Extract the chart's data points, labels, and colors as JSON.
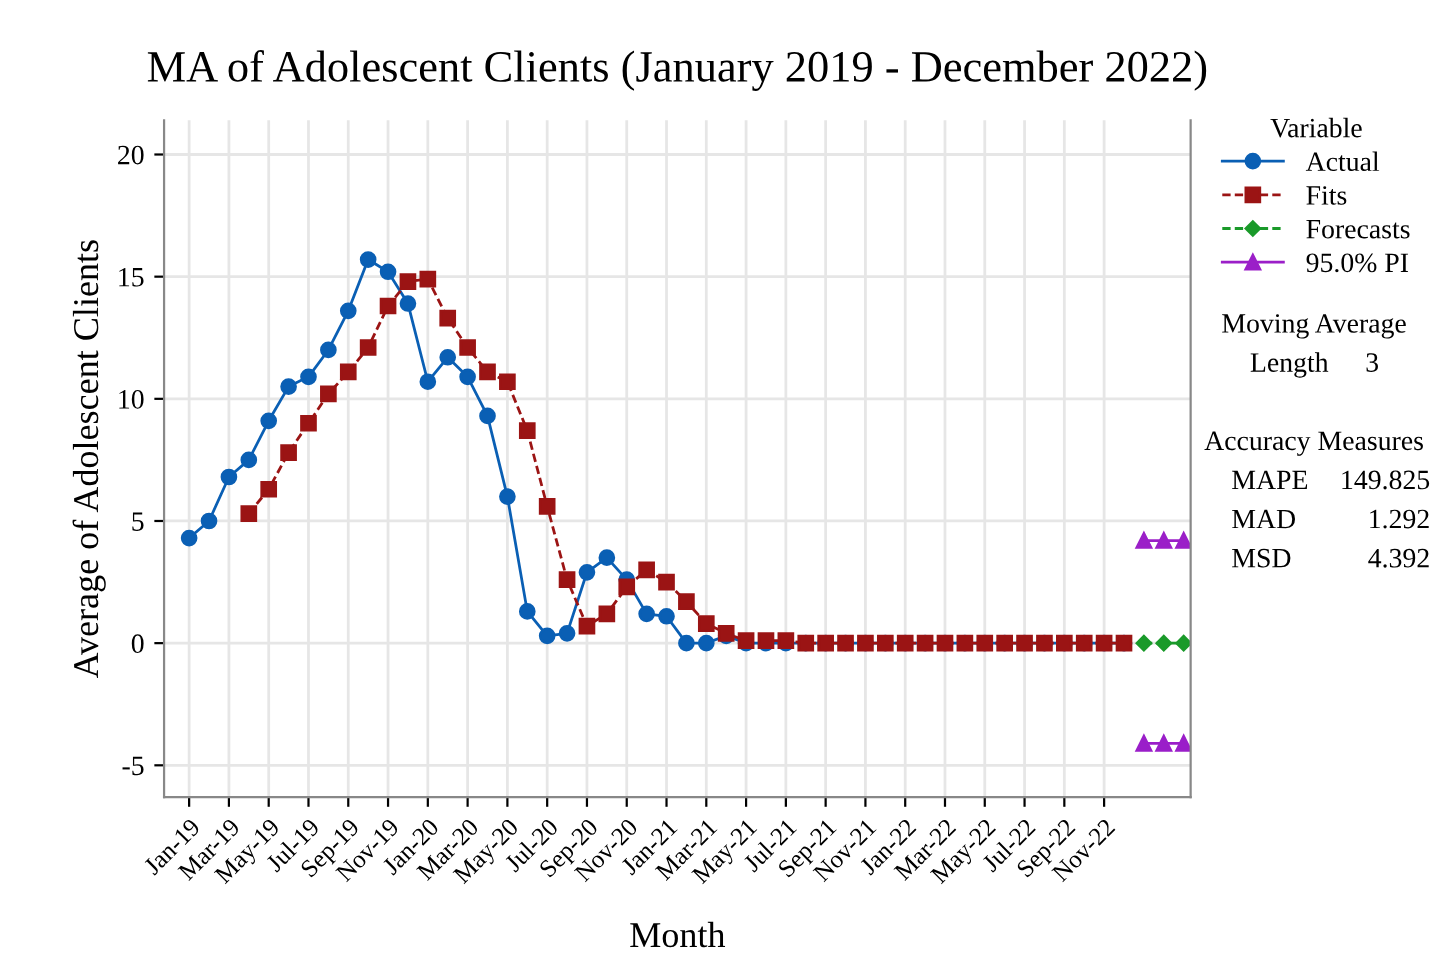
{
  "chart_data": {
    "type": "line",
    "title": "MA of Adolescent Clients (January 2019 - December 2022)",
    "xlabel": "Month",
    "ylabel": "Average of Adolescent Clients",
    "categories": [
      "Jan-19",
      null,
      "Mar-19",
      null,
      "May-19",
      null,
      "Jul-19",
      null,
      "Sep-19",
      null,
      "Nov-19",
      null,
      "Jan-20",
      null,
      "Mar-20",
      null,
      "May-20",
      null,
      "Jul-20",
      null,
      "Sep-20",
      null,
      "Nov-20",
      null,
      "Jan-21",
      null,
      "Mar-21",
      null,
      "May-21",
      null,
      "Jul-21",
      null,
      "Sep-21",
      null,
      "Nov-21",
      null,
      "Jan-22",
      null,
      "Mar-22",
      null,
      "May-22",
      null,
      "Jul-22",
      null,
      "Sep-22",
      null,
      "Nov-22",
      null,
      null,
      null,
      null
    ],
    "series": [
      {
        "name": "Actual",
        "color": "#0a5fb4",
        "marker": "circle",
        "line_style": "solid",
        "values": [
          4.3,
          5.0,
          6.8,
          7.5,
          9.1,
          10.5,
          10.9,
          12.0,
          13.6,
          15.7,
          15.2,
          13.9,
          10.7,
          11.7,
          10.9,
          9.3,
          6.0,
          1.3,
          0.3,
          0.4,
          2.9,
          3.5,
          2.6,
          1.2,
          1.1,
          0,
          0,
          0.3,
          0,
          0,
          0,
          0,
          0,
          0,
          0,
          0,
          0,
          0,
          0,
          0,
          0,
          0,
          0,
          0,
          0,
          0,
          0,
          0,
          null,
          null,
          null
        ]
      },
      {
        "name": "Fits",
        "color": "#9b1414",
        "marker": "square",
        "line_style": "dashed",
        "values": [
          null,
          null,
          null,
          5.3,
          6.3,
          7.8,
          9.0,
          10.2,
          11.1,
          12.1,
          13.8,
          14.8,
          14.9,
          13.3,
          12.1,
          11.1,
          10.7,
          8.7,
          5.6,
          2.6,
          0.7,
          1.2,
          2.3,
          3.0,
          2.5,
          1.7,
          0.8,
          0.4,
          0.1,
          0.1,
          0.1,
          0,
          0,
          0,
          0,
          0,
          0,
          0,
          0,
          0,
          0,
          0,
          0,
          0,
          0,
          0,
          0,
          0,
          null,
          null,
          null
        ]
      },
      {
        "name": "Forecasts",
        "color": "#1a9a2a",
        "marker": "diamond",
        "line_style": "dashed",
        "values": [
          null,
          null,
          null,
          null,
          null,
          null,
          null,
          null,
          null,
          null,
          null,
          null,
          null,
          null,
          null,
          null,
          null,
          null,
          null,
          null,
          null,
          null,
          null,
          null,
          null,
          null,
          null,
          null,
          null,
          null,
          null,
          null,
          null,
          null,
          null,
          null,
          null,
          null,
          null,
          null,
          null,
          null,
          null,
          null,
          null,
          null,
          null,
          null,
          0,
          0,
          0
        ]
      },
      {
        "name": "95.0% PI",
        "color": "#9b1fc8",
        "marker": "triangle",
        "line_style": "solid",
        "values": [
          null,
          null,
          null,
          null,
          null,
          null,
          null,
          null,
          null,
          null,
          null,
          null,
          null,
          null,
          null,
          null,
          null,
          null,
          null,
          null,
          null,
          null,
          null,
          null,
          null,
          null,
          null,
          null,
          null,
          null,
          null,
          null,
          null,
          null,
          null,
          null,
          null,
          null,
          null,
          null,
          null,
          null,
          null,
          null,
          null,
          null,
          null,
          null,
          4.2,
          4.2,
          4.2
        ]
      },
      {
        "color": "#9a1ec9",
        "marker": "triangle",
        "line_style": "solid",
        "values": [
          null,
          null,
          null,
          null,
          null,
          null,
          null,
          null,
          null,
          null,
          null,
          null,
          null,
          null,
          null,
          null,
          null,
          null,
          null,
          null,
          null,
          null,
          null,
          null,
          null,
          null,
          null,
          null,
          null,
          null,
          null,
          null,
          null,
          null,
          null,
          null,
          null,
          null,
          null,
          null,
          null,
          null,
          null,
          null,
          null,
          null,
          null,
          null,
          -4.1,
          -4.1,
          -4.1
        ]
      }
    ],
    "ylim": [
      -6.3,
      21.4
    ],
    "yticks": [
      {
        "value": -5,
        "label": "-5"
      },
      0,
      5,
      10,
      15,
      20
    ],
    "grid": true,
    "legend": "right",
    "legend_title": "Variable",
    "annotations": [
      "Moving Average",
      "Length 3",
      "Accuracy Measures",
      "MAPE 149.825",
      "MAD 1.292",
      "MSD 4.392"
    ]
  }
}
